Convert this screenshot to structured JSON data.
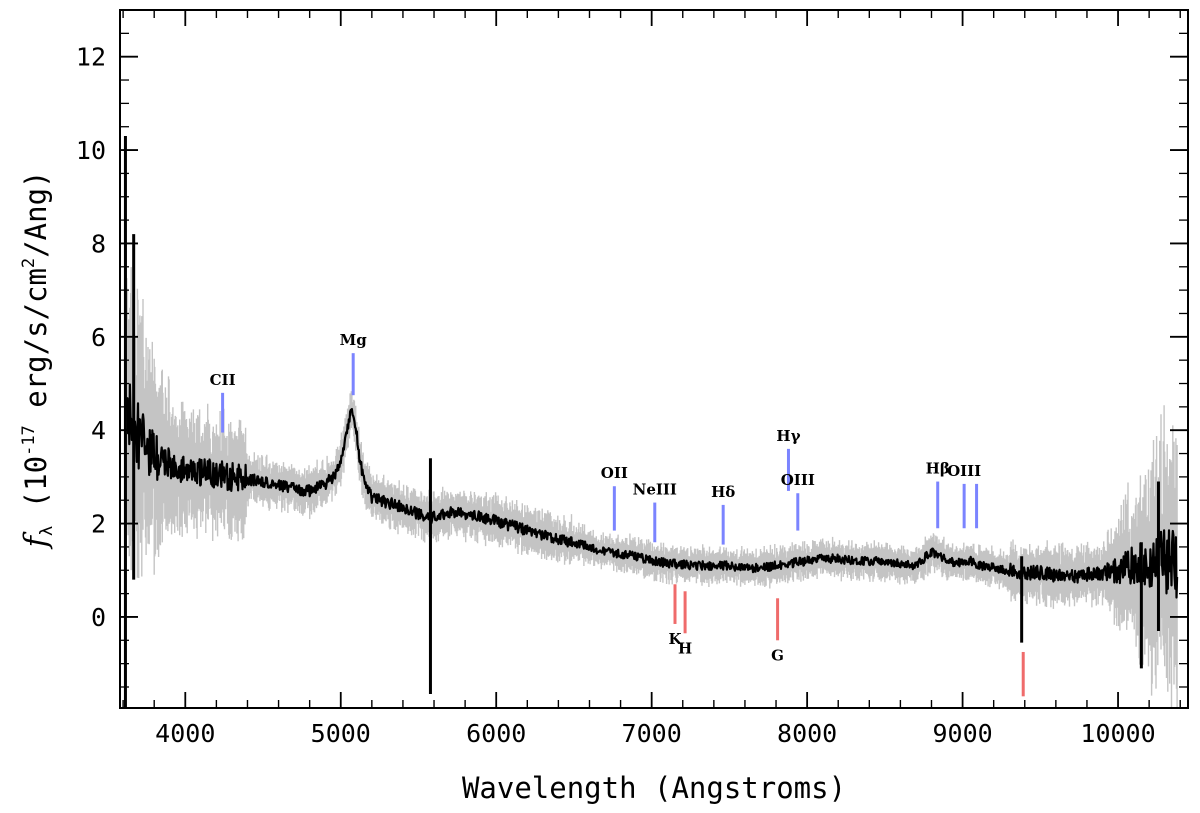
{
  "chart_data": {
    "type": "line",
    "title": "",
    "xlabel": "Wavelength (Angstroms)",
    "ylabel_prefix": "f",
    "ylabel_sub": "λ",
    "ylabel_main": " (10",
    "ylabel_exp": "-17",
    "ylabel_mid": " erg/s/cm",
    "ylabel_exp2": "2",
    "ylabel_end": "/Ang)",
    "xlim": [
      3580,
      10450
    ],
    "ylim": [
      -1.95,
      13.0
    ],
    "x_ticks": [
      4000,
      5000,
      6000,
      7000,
      8000,
      9000,
      10000
    ],
    "x_tick_labels": [
      "4000",
      "5000",
      "6000",
      "7000",
      "8000",
      "9000",
      "10000"
    ],
    "y_ticks": [
      0,
      2,
      4,
      6,
      8,
      10,
      12
    ],
    "y_tick_labels": [
      "0",
      "2",
      "4",
      "6",
      "8",
      "10",
      "12"
    ],
    "series": [
      {
        "name": "spectrum",
        "color": "#000000",
        "error_color": "#c4c4c4",
        "x": [
          3620,
          3660,
          3700,
          3750,
          3800,
          3850,
          3900,
          3950,
          4000,
          4100,
          4200,
          4300,
          4400,
          4500,
          4600,
          4700,
          4800,
          4900,
          4950,
          5000,
          5030,
          5060,
          5080,
          5100,
          5120,
          5150,
          5200,
          5300,
          5400,
          5500,
          5560,
          5600,
          5650,
          5700,
          5800,
          5900,
          6000,
          6100,
          6200,
          6300,
          6400,
          6500,
          6600,
          6700,
          6800,
          6900,
          7000,
          7100,
          7200,
          7300,
          7400,
          7500,
          7600,
          7700,
          7800,
          7900,
          8000,
          8100,
          8200,
          8300,
          8400,
          8500,
          8600,
          8700,
          8800,
          8850,
          8900,
          9000,
          9050,
          9100,
          9200,
          9300,
          9400,
          9500,
          9600,
          9700,
          9800,
          9900,
          10000,
          10100,
          10200,
          10300,
          10380
        ],
        "values": [
          4.5,
          4.1,
          3.8,
          3.6,
          3.4,
          3.3,
          3.25,
          3.2,
          3.15,
          3.1,
          3.05,
          3.0,
          2.95,
          2.9,
          2.82,
          2.75,
          2.7,
          2.85,
          3.0,
          3.3,
          3.8,
          4.3,
          4.4,
          4.0,
          3.4,
          2.9,
          2.55,
          2.45,
          2.35,
          2.2,
          2.1,
          2.15,
          2.2,
          2.25,
          2.2,
          2.15,
          2.05,
          1.95,
          1.85,
          1.75,
          1.65,
          1.6,
          1.5,
          1.4,
          1.35,
          1.3,
          1.2,
          1.15,
          1.12,
          1.1,
          1.1,
          1.1,
          1.05,
          1.05,
          1.1,
          1.15,
          1.2,
          1.25,
          1.25,
          1.2,
          1.2,
          1.2,
          1.15,
          1.1,
          1.4,
          1.3,
          1.2,
          1.15,
          1.2,
          1.1,
          1.05,
          1.0,
          0.95,
          0.95,
          0.9,
          0.85,
          0.9,
          0.95,
          1.0,
          1.1,
          1.15,
          1.2,
          1.1
        ],
        "spikes": [
          {
            "x": 3615,
            "low": -1.95,
            "high": 10.3
          },
          {
            "x": 3668,
            "low": 0.8,
            "high": 8.2
          },
          {
            "x": 5577,
            "low": -1.65,
            "high": 3.4
          },
          {
            "x": 9380,
            "low": -0.55,
            "high": 1.3
          },
          {
            "x": 10150,
            "low": -1.1,
            "high": 1.6
          },
          {
            "x": 10260,
            "low": -0.3,
            "high": 2.9
          }
        ]
      }
    ],
    "emission_lines": [
      {
        "label": "CII",
        "x": 4240,
        "y1": 3.95,
        "y2": 4.8,
        "color": "#7b84ff"
      },
      {
        "label": "Mg",
        "x": 5080,
        "y1": 4.75,
        "y2": 5.65,
        "color": "#7b84ff"
      },
      {
        "label": "OII",
        "x": 6760,
        "y1": 1.85,
        "y2": 2.8,
        "color": "#7b84ff"
      },
      {
        "label": "NeIII",
        "x": 7020,
        "y1": 1.6,
        "y2": 2.45,
        "color": "#7b84ff"
      },
      {
        "label": "Hδ",
        "x": 7460,
        "y1": 1.55,
        "y2": 2.4,
        "color": "#7b84ff"
      },
      {
        "label": "Hγ",
        "x": 7880,
        "y1": 2.7,
        "y2": 3.6,
        "color": "#7b84ff"
      },
      {
        "label": "OIII",
        "x": 7940,
        "y1": 1.85,
        "y2": 2.65,
        "color": "#7b84ff"
      },
      {
        "label": "Hβ",
        "x": 8840,
        "y1": 1.9,
        "y2": 2.9,
        "color": "#7b84ff"
      },
      {
        "label": "OIII",
        "x": 9010,
        "y1": 1.9,
        "y2": 2.85,
        "color": "#7b84ff"
      },
      {
        "label": "",
        "x": 9090,
        "y1": 1.9,
        "y2": 2.85,
        "color": "#7b84ff"
      }
    ],
    "absorption_lines": [
      {
        "label": "K",
        "x": 7150,
        "y1": 0.7,
        "y2": -0.15,
        "color": "#ef6b6b"
      },
      {
        "label": "H",
        "x": 7215,
        "y1": 0.55,
        "y2": -0.35,
        "color": "#ef6b6b"
      },
      {
        "label": "G",
        "x": 7810,
        "y1": 0.4,
        "y2": -0.5,
        "color": "#ef6b6b"
      },
      {
        "label": "",
        "x": 9390,
        "y1": -0.75,
        "y2": -1.7,
        "color": "#ef6b6b"
      }
    ]
  }
}
